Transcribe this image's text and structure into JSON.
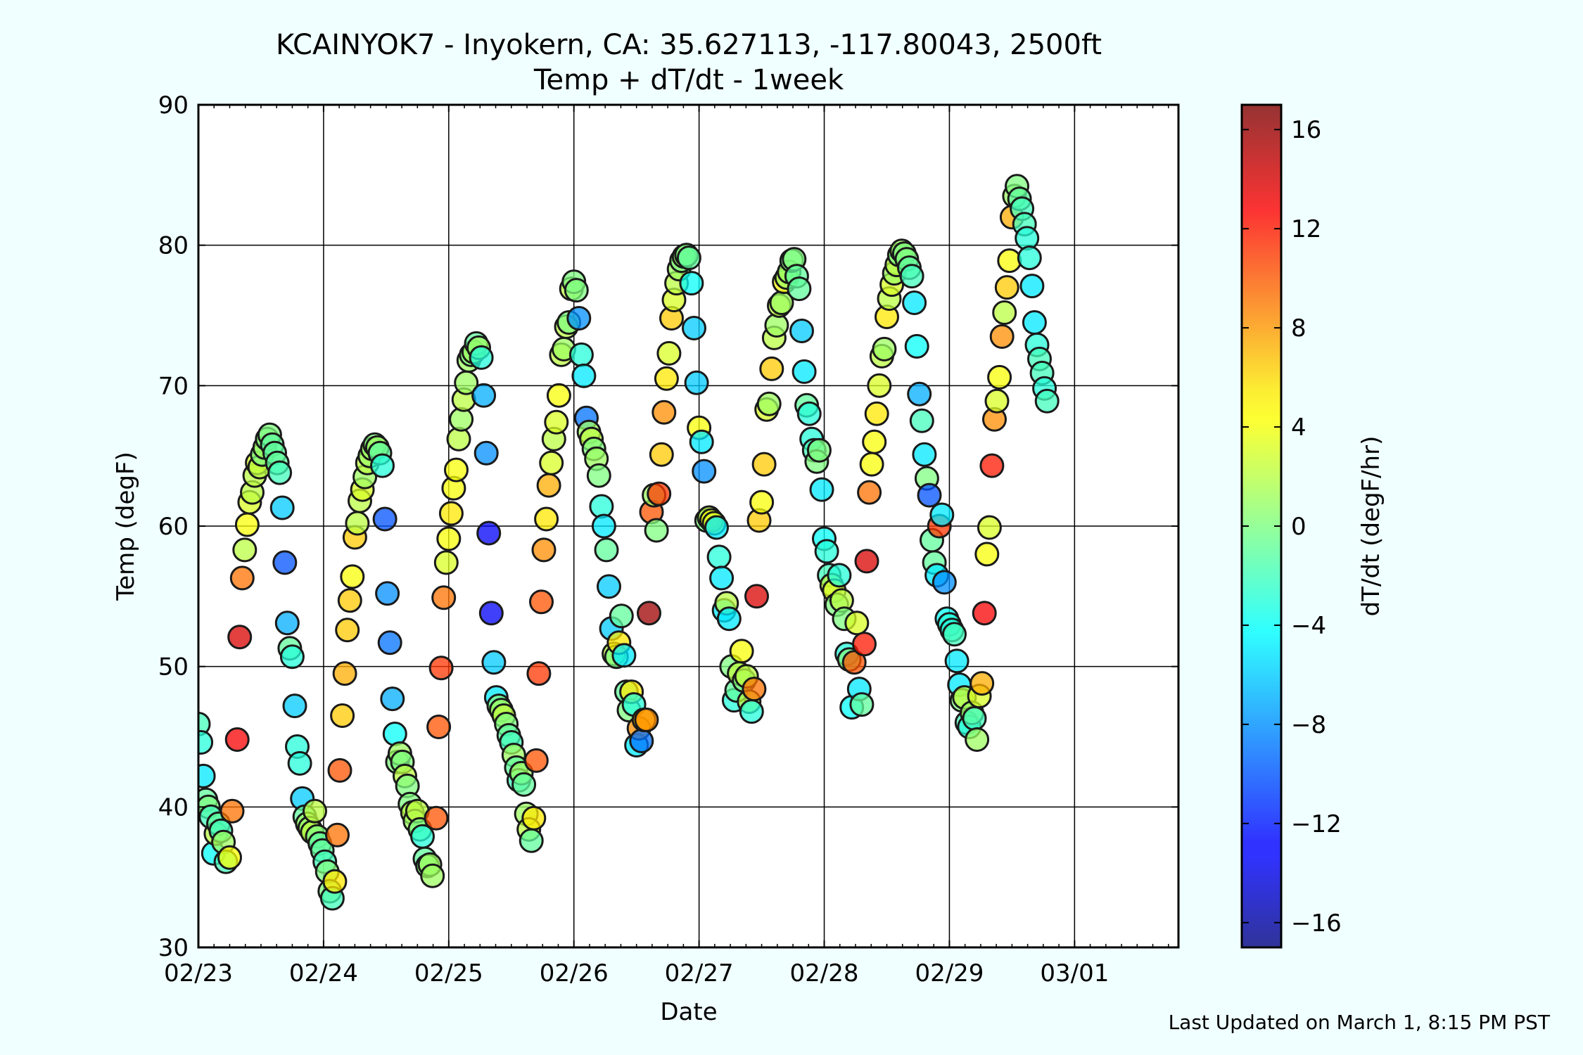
{
  "chart_data": {
    "type": "scatter",
    "title": "KCAINYOK7 - Inyokern, CA: 35.627113, -117.80043, 2500ft",
    "subtitle": "Temp + dT/dt - 1week",
    "xlabel": "Date",
    "ylabel": "Temp (degF)",
    "x_unit": "days",
    "x_tick_labels": [
      "02/23",
      "02/24",
      "02/25",
      "02/26",
      "02/27",
      "02/28",
      "02/29",
      "03/01"
    ],
    "xlim": [
      0,
      7.83
    ],
    "ylim": [
      30,
      90
    ],
    "y_ticks": [
      30,
      40,
      50,
      60,
      70,
      80,
      90
    ],
    "grid": true,
    "colorbar": {
      "label": "dT/dt (degF/hr)",
      "range": [
        -17,
        17
      ],
      "ticks": [
        -16,
        -12,
        -8,
        -4,
        0,
        4,
        8,
        12,
        16
      ],
      "tick_labels": [
        "−16",
        "−12",
        "−8",
        "−4",
        "0",
        "4",
        "8",
        "12",
        "16"
      ],
      "colormap": "jet"
    },
    "points": [
      [
        0.0,
        45.9,
        -2
      ],
      [
        0.02,
        44.6,
        -3
      ],
      [
        0.04,
        42.2,
        -5
      ],
      [
        0.06,
        40.5,
        -1
      ],
      [
        0.08,
        40.0,
        0
      ],
      [
        0.1,
        39.3,
        -2
      ],
      [
        0.12,
        36.7,
        -4
      ],
      [
        0.14,
        38.1,
        2
      ],
      [
        0.16,
        38.8,
        -1
      ],
      [
        0.18,
        38.3,
        -2
      ],
      [
        0.2,
        37.5,
        1
      ],
      [
        0.22,
        36.1,
        -2
      ],
      [
        0.25,
        36.4,
        4
      ],
      [
        0.27,
        39.7,
        9
      ],
      [
        0.31,
        44.8,
        13
      ],
      [
        0.33,
        52.1,
        14
      ],
      [
        0.35,
        56.3,
        9
      ],
      [
        0.37,
        58.3,
        2
      ],
      [
        0.39,
        60.1,
        4
      ],
      [
        0.41,
        61.7,
        3
      ],
      [
        0.43,
        62.4,
        2
      ],
      [
        0.45,
        63.6,
        2
      ],
      [
        0.47,
        64.5,
        3
      ],
      [
        0.49,
        64.2,
        2
      ],
      [
        0.51,
        65.1,
        0
      ],
      [
        0.53,
        65.6,
        1
      ],
      [
        0.55,
        66.2,
        0
      ],
      [
        0.57,
        66.5,
        0
      ],
      [
        0.59,
        65.8,
        -1
      ],
      [
        0.61,
        65.2,
        -1
      ],
      [
        0.63,
        64.5,
        -1
      ],
      [
        0.65,
        63.8,
        -2
      ],
      [
        0.67,
        61.3,
        -6
      ],
      [
        0.69,
        57.4,
        -10
      ],
      [
        0.71,
        53.1,
        -7
      ],
      [
        0.73,
        51.3,
        -1
      ],
      [
        0.75,
        50.7,
        -3
      ],
      [
        0.77,
        47.2,
        -6
      ],
      [
        0.79,
        44.3,
        -3
      ],
      [
        0.81,
        43.1,
        -3
      ],
      [
        0.83,
        40.6,
        -6
      ],
      [
        0.85,
        39.3,
        -1
      ],
      [
        0.87,
        38.8,
        1
      ],
      [
        0.89,
        38.5,
        1
      ],
      [
        0.91,
        38.2,
        2
      ],
      [
        0.93,
        39.7,
        2
      ],
      [
        0.95,
        37.9,
        0
      ],
      [
        0.97,
        37.4,
        -1
      ],
      [
        0.99,
        36.9,
        -1
      ],
      [
        1.01,
        36.1,
        -2
      ],
      [
        1.03,
        35.4,
        0
      ],
      [
        1.05,
        34.0,
        0
      ],
      [
        1.07,
        33.5,
        -2
      ],
      [
        1.09,
        34.7,
        5
      ],
      [
        1.11,
        38.0,
        9
      ],
      [
        1.13,
        42.6,
        10
      ],
      [
        1.15,
        46.5,
        6
      ],
      [
        1.17,
        49.5,
        7
      ],
      [
        1.19,
        52.6,
        6
      ],
      [
        1.21,
        54.7,
        6
      ],
      [
        1.23,
        56.4,
        4
      ],
      [
        1.25,
        59.2,
        6
      ],
      [
        1.27,
        60.2,
        2
      ],
      [
        1.29,
        61.8,
        2
      ],
      [
        1.31,
        62.6,
        3
      ],
      [
        1.33,
        63.5,
        1
      ],
      [
        1.35,
        64.5,
        2
      ],
      [
        1.37,
        65.0,
        1
      ],
      [
        1.39,
        65.5,
        1
      ],
      [
        1.41,
        65.8,
        0
      ],
      [
        1.43,
        65.6,
        1
      ],
      [
        1.45,
        65.2,
        -1
      ],
      [
        1.47,
        64.3,
        -3
      ],
      [
        1.49,
        60.5,
        -10
      ],
      [
        1.51,
        55.2,
        -8
      ],
      [
        1.53,
        51.7,
        -9
      ],
      [
        1.55,
        47.7,
        -7
      ],
      [
        1.57,
        45.2,
        -4
      ],
      [
        1.59,
        43.2,
        0
      ],
      [
        1.61,
        43.8,
        1
      ],
      [
        1.63,
        43.2,
        0
      ],
      [
        1.65,
        42.2,
        2
      ],
      [
        1.67,
        41.5,
        0
      ],
      [
        1.69,
        40.2,
        0
      ],
      [
        1.71,
        39.6,
        2
      ],
      [
        1.73,
        39.0,
        1
      ],
      [
        1.75,
        39.7,
        2
      ],
      [
        1.77,
        38.4,
        0
      ],
      [
        1.79,
        37.9,
        -3
      ],
      [
        1.81,
        36.3,
        -1
      ],
      [
        1.83,
        35.8,
        0
      ],
      [
        1.85,
        35.9,
        1
      ],
      [
        1.87,
        35.1,
        1
      ],
      [
        1.9,
        39.2,
        10
      ],
      [
        1.92,
        45.7,
        10
      ],
      [
        1.94,
        49.9,
        11
      ],
      [
        1.96,
        54.9,
        9
      ],
      [
        1.98,
        57.4,
        3
      ],
      [
        2.0,
        59.1,
        4
      ],
      [
        2.02,
        60.9,
        5
      ],
      [
        2.04,
        62.7,
        4
      ],
      [
        2.06,
        64.0,
        4
      ],
      [
        2.08,
        66.2,
        2
      ],
      [
        2.1,
        67.6,
        1
      ],
      [
        2.12,
        69.0,
        2
      ],
      [
        2.14,
        70.2,
        1
      ],
      [
        2.16,
        71.8,
        1
      ],
      [
        2.18,
        72.2,
        0
      ],
      [
        2.2,
        72.4,
        1
      ],
      [
        2.22,
        73.0,
        -1
      ],
      [
        2.24,
        72.7,
        1
      ],
      [
        2.26,
        72.0,
        -3
      ],
      [
        2.28,
        69.3,
        -7
      ],
      [
        2.3,
        65.2,
        -8
      ],
      [
        2.32,
        59.5,
        -13
      ],
      [
        2.34,
        53.8,
        -13
      ],
      [
        2.36,
        50.3,
        -6
      ],
      [
        2.38,
        47.8,
        -5
      ],
      [
        2.4,
        47.2,
        0
      ],
      [
        2.42,
        46.9,
        1
      ],
      [
        2.44,
        46.5,
        2
      ],
      [
        2.46,
        45.9,
        0
      ],
      [
        2.48,
        45.1,
        -1
      ],
      [
        2.5,
        44.6,
        -2
      ],
      [
        2.52,
        43.7,
        1
      ],
      [
        2.54,
        42.8,
        -1
      ],
      [
        2.56,
        41.9,
        -2
      ],
      [
        2.58,
        42.4,
        1
      ],
      [
        2.6,
        41.6,
        -1
      ],
      [
        2.62,
        39.5,
        1
      ],
      [
        2.64,
        38.4,
        2
      ],
      [
        2.66,
        37.6,
        -1
      ],
      [
        2.68,
        39.2,
        5
      ],
      [
        2.7,
        43.3,
        10
      ],
      [
        2.72,
        49.5,
        11
      ],
      [
        2.74,
        54.6,
        10
      ],
      [
        2.76,
        58.3,
        8
      ],
      [
        2.78,
        60.5,
        5
      ],
      [
        2.8,
        62.9,
        7
      ],
      [
        2.82,
        64.5,
        3
      ],
      [
        2.84,
        66.2,
        2
      ],
      [
        2.86,
        67.4,
        3
      ],
      [
        2.88,
        69.3,
        4
      ],
      [
        2.9,
        72.2,
        2
      ],
      [
        2.92,
        72.6,
        1
      ],
      [
        2.94,
        74.2,
        2
      ],
      [
        2.96,
        74.5,
        0
      ],
      [
        2.98,
        76.9,
        2
      ],
      [
        3.0,
        77.4,
        0
      ],
      [
        3.02,
        76.8,
        0
      ],
      [
        3.04,
        74.8,
        -8
      ],
      [
        3.06,
        72.2,
        -3
      ],
      [
        3.08,
        70.7,
        -5
      ],
      [
        3.1,
        67.7,
        -9
      ],
      [
        3.12,
        66.7,
        1
      ],
      [
        3.14,
        66.2,
        2
      ],
      [
        3.16,
        65.5,
        0
      ],
      [
        3.18,
        64.8,
        1
      ],
      [
        3.2,
        63.6,
        0
      ],
      [
        3.22,
        61.4,
        -3
      ],
      [
        3.24,
        60.0,
        -5
      ],
      [
        3.26,
        58.3,
        -1
      ],
      [
        3.28,
        55.7,
        -6
      ],
      [
        3.3,
        52.7,
        -6
      ],
      [
        3.32,
        50.9,
        2
      ],
      [
        3.34,
        50.7,
        0
      ],
      [
        3.36,
        51.7,
        5
      ],
      [
        3.38,
        53.6,
        -1
      ],
      [
        3.4,
        50.8,
        -5
      ],
      [
        3.42,
        48.2,
        -1
      ],
      [
        3.44,
        46.9,
        0
      ],
      [
        3.46,
        48.2,
        5
      ],
      [
        3.48,
        47.3,
        -3
      ],
      [
        3.5,
        44.4,
        -5
      ],
      [
        3.52,
        45.6,
        8
      ],
      [
        3.54,
        44.7,
        -9
      ],
      [
        3.56,
        46.2,
        6
      ],
      [
        3.58,
        46.2,
        8
      ],
      [
        3.6,
        53.8,
        16
      ],
      [
        3.62,
        61.0,
        10
      ],
      [
        3.64,
        62.2,
        1
      ],
      [
        3.66,
        59.7,
        0
      ],
      [
        3.68,
        62.3,
        11
      ],
      [
        3.7,
        65.1,
        6
      ],
      [
        3.72,
        68.1,
        8
      ],
      [
        3.74,
        70.5,
        5
      ],
      [
        3.76,
        72.3,
        3
      ],
      [
        3.78,
        74.8,
        6
      ],
      [
        3.8,
        76.1,
        3
      ],
      [
        3.82,
        77.3,
        2
      ],
      [
        3.84,
        78.3,
        1
      ],
      [
        3.86,
        78.9,
        0
      ],
      [
        3.88,
        79.2,
        1
      ],
      [
        3.9,
        79.3,
        0
      ],
      [
        3.92,
        79.1,
        -1
      ],
      [
        3.94,
        77.3,
        -4
      ],
      [
        3.96,
        74.1,
        -6
      ],
      [
        3.98,
        70.2,
        -6
      ],
      [
        4.0,
        67.0,
        4
      ],
      [
        4.02,
        66.0,
        -5
      ],
      [
        4.04,
        63.9,
        -8
      ],
      [
        4.06,
        60.4,
        0
      ],
      [
        4.08,
        60.6,
        2
      ],
      [
        4.1,
        60.4,
        4
      ],
      [
        4.12,
        60.2,
        3
      ],
      [
        4.14,
        59.9,
        -5
      ],
      [
        4.16,
        57.8,
        -3
      ],
      [
        4.18,
        56.3,
        -5
      ],
      [
        4.2,
        54.0,
        -5
      ],
      [
        4.22,
        54.5,
        2
      ],
      [
        4.24,
        53.4,
        -5
      ],
      [
        4.26,
        50.0,
        0
      ],
      [
        4.28,
        47.6,
        -3
      ],
      [
        4.3,
        48.3,
        -1
      ],
      [
        4.32,
        49.5,
        2
      ],
      [
        4.34,
        51.1,
        4
      ],
      [
        4.36,
        49.0,
        0
      ],
      [
        4.38,
        49.3,
        2
      ],
      [
        4.4,
        47.5,
        2
      ],
      [
        4.42,
        46.8,
        -3
      ],
      [
        4.44,
        48.4,
        9
      ],
      [
        4.46,
        55.0,
        14
      ],
      [
        4.48,
        60.4,
        6
      ],
      [
        4.5,
        61.7,
        4
      ],
      [
        4.52,
        64.4,
        6
      ],
      [
        4.54,
        68.3,
        3
      ],
      [
        4.56,
        68.7,
        1
      ],
      [
        4.58,
        71.2,
        6
      ],
      [
        4.6,
        73.4,
        2
      ],
      [
        4.62,
        74.3,
        1
      ],
      [
        4.64,
        75.7,
        2
      ],
      [
        4.66,
        75.9,
        1
      ],
      [
        4.68,
        77.4,
        4
      ],
      [
        4.7,
        77.7,
        1
      ],
      [
        4.72,
        78.1,
        1
      ],
      [
        4.74,
        78.9,
        0
      ],
      [
        4.76,
        79.0,
        0
      ],
      [
        4.78,
        77.8,
        -1
      ],
      [
        4.8,
        76.9,
        -1
      ],
      [
        4.82,
        73.9,
        -6
      ],
      [
        4.84,
        71.0,
        -5
      ],
      [
        4.86,
        68.6,
        -1
      ],
      [
        4.88,
        68.0,
        -3
      ],
      [
        4.9,
        66.2,
        -3
      ],
      [
        4.92,
        65.4,
        -2
      ],
      [
        4.94,
        64.6,
        0
      ],
      [
        4.96,
        65.4,
        0
      ],
      [
        4.98,
        62.6,
        -5
      ],
      [
        5.0,
        59.1,
        -4
      ],
      [
        5.02,
        58.2,
        -3
      ],
      [
        5.04,
        56.5,
        -2
      ],
      [
        5.06,
        55.8,
        2
      ],
      [
        5.08,
        55.4,
        3
      ],
      [
        5.1,
        54.4,
        0
      ],
      [
        5.12,
        56.5,
        -3
      ],
      [
        5.14,
        54.7,
        2
      ],
      [
        5.16,
        53.4,
        0
      ],
      [
        5.18,
        50.9,
        -3
      ],
      [
        5.2,
        50.5,
        0
      ],
      [
        5.22,
        47.1,
        -4
      ],
      [
        5.24,
        50.3,
        10
      ],
      [
        5.26,
        53.1,
        3
      ],
      [
        5.28,
        48.4,
        -5
      ],
      [
        5.3,
        47.3,
        -1
      ],
      [
        5.32,
        51.6,
        12
      ],
      [
        5.34,
        57.5,
        14
      ],
      [
        5.36,
        62.4,
        9
      ],
      [
        5.38,
        64.4,
        4
      ],
      [
        5.4,
        66.0,
        4
      ],
      [
        5.42,
        68.0,
        5
      ],
      [
        5.44,
        70.0,
        3
      ],
      [
        5.46,
        72.1,
        2
      ],
      [
        5.48,
        72.6,
        1
      ],
      [
        5.5,
        74.9,
        5
      ],
      [
        5.52,
        76.2,
        2
      ],
      [
        5.54,
        77.2,
        3
      ],
      [
        5.56,
        78.0,
        1
      ],
      [
        5.58,
        78.6,
        2
      ],
      [
        5.6,
        79.3,
        0
      ],
      [
        5.62,
        79.6,
        1
      ],
      [
        5.64,
        79.4,
        0
      ],
      [
        5.66,
        79.0,
        0
      ],
      [
        5.68,
        78.4,
        -1
      ],
      [
        5.7,
        77.8,
        -2
      ],
      [
        5.72,
        75.9,
        -5
      ],
      [
        5.74,
        72.8,
        -4
      ],
      [
        5.76,
        69.4,
        -7
      ],
      [
        5.78,
        67.5,
        -2
      ],
      [
        5.8,
        65.1,
        -5
      ],
      [
        5.82,
        63.4,
        0
      ],
      [
        5.84,
        62.2,
        -10
      ],
      [
        5.86,
        59.0,
        -1
      ],
      [
        5.88,
        57.4,
        -1
      ],
      [
        5.9,
        56.5,
        -5
      ],
      [
        5.92,
        60.0,
        11
      ],
      [
        5.94,
        60.8,
        -5
      ],
      [
        5.96,
        56.0,
        -8
      ],
      [
        5.98,
        53.4,
        -4
      ],
      [
        6.0,
        53.0,
        -3
      ],
      [
        6.02,
        52.6,
        -3
      ],
      [
        6.04,
        52.3,
        -2
      ],
      [
        6.06,
        50.4,
        -5
      ],
      [
        6.08,
        48.7,
        -5
      ],
      [
        6.1,
        47.6,
        0
      ],
      [
        6.12,
        47.8,
        2
      ],
      [
        6.14,
        46.0,
        -2
      ],
      [
        6.16,
        45.7,
        -3
      ],
      [
        6.18,
        46.7,
        1
      ],
      [
        6.2,
        46.3,
        -2
      ],
      [
        6.22,
        44.8,
        1
      ],
      [
        6.24,
        47.9,
        3
      ],
      [
        6.26,
        48.8,
        7
      ],
      [
        6.28,
        53.8,
        13
      ],
      [
        6.3,
        58.0,
        4
      ],
      [
        6.32,
        59.9,
        3
      ],
      [
        6.34,
        64.3,
        12
      ],
      [
        6.36,
        67.6,
        8
      ],
      [
        6.38,
        68.9,
        3
      ],
      [
        6.4,
        70.6,
        4
      ],
      [
        6.42,
        73.5,
        8
      ],
      [
        6.44,
        75.2,
        2
      ],
      [
        6.46,
        77.0,
        6
      ],
      [
        6.48,
        78.9,
        4
      ],
      [
        6.5,
        82.0,
        7
      ],
      [
        6.52,
        83.5,
        1
      ],
      [
        6.54,
        84.2,
        0
      ],
      [
        6.56,
        83.3,
        -1
      ],
      [
        6.58,
        82.6,
        -2
      ],
      [
        6.6,
        81.5,
        -2
      ],
      [
        6.62,
        80.5,
        -3
      ],
      [
        6.64,
        79.1,
        -3
      ],
      [
        6.66,
        77.1,
        -5
      ],
      [
        6.68,
        74.5,
        -5
      ],
      [
        6.7,
        72.9,
        -3
      ],
      [
        6.72,
        71.9,
        -2
      ],
      [
        6.74,
        70.9,
        -2
      ],
      [
        6.76,
        69.8,
        -3
      ],
      [
        6.78,
        68.9,
        -2
      ]
    ],
    "footer": "Last Updated on March 1, 8:15 PM PST"
  }
}
